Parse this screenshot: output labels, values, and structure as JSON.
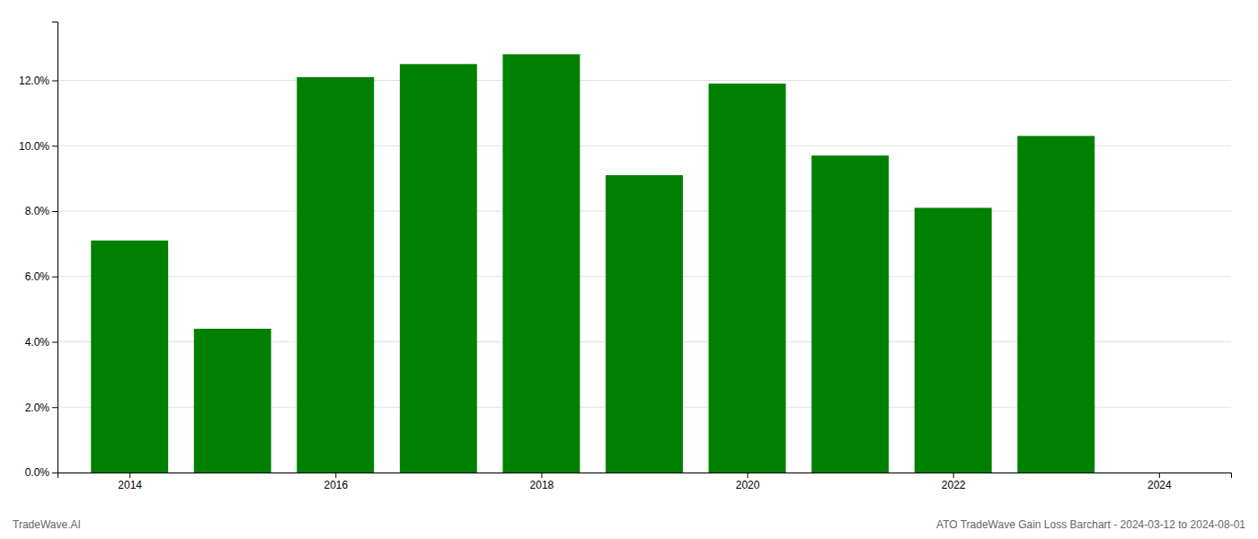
{
  "chart_data": {
    "type": "bar",
    "x": [
      2014,
      2015,
      2016,
      2017,
      2018,
      2019,
      2020,
      2021,
      2022,
      2023
    ],
    "values": [
      0.071,
      0.044,
      0.121,
      0.125,
      0.128,
      0.091,
      0.119,
      0.097,
      0.081,
      0.103
    ],
    "color": "#008000",
    "xlim": [
      2013.3,
      2024.7
    ],
    "xticks": [
      2014,
      2016,
      2018,
      2020,
      2022,
      2024
    ],
    "ylim": [
      0,
      0.138
    ],
    "yticks": [
      {
        "value": 0.0,
        "label": "0.0%"
      },
      {
        "value": 0.02,
        "label": "2.0%"
      },
      {
        "value": 0.04,
        "label": "4.0%"
      },
      {
        "value": 0.06,
        "label": "6.0%"
      },
      {
        "value": 0.08,
        "label": "8.0%"
      },
      {
        "value": 0.1,
        "label": "10.0%"
      },
      {
        "value": 0.12,
        "label": "12.0%"
      }
    ],
    "grid": true,
    "annotations": [
      "TradeWave.AI",
      "ATO TradeWave Gain Loss Barchart - 2024-03-12 to 2024-08-01"
    ]
  }
}
